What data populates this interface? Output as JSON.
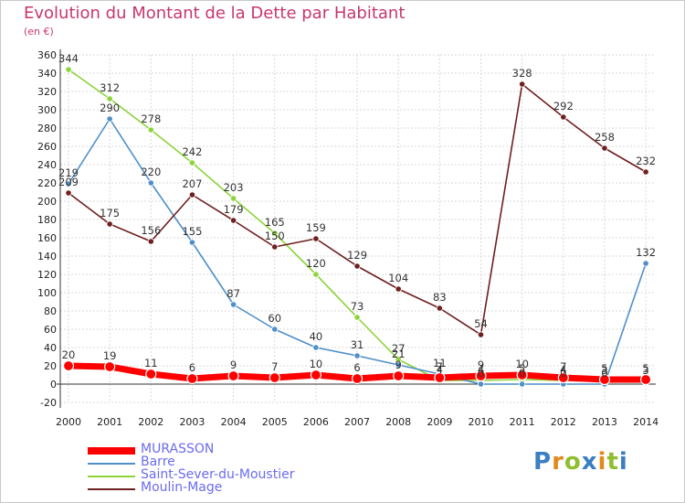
{
  "title": "Evolution du Montant de la Dette par Habitant",
  "subtitle": "(en €)",
  "logo_text": "Proxiti",
  "chart_data": {
    "type": "line",
    "title": "Evolution du Montant de la Dette par Habitant",
    "ylabel": "(en €)",
    "xlabel": "",
    "ylim": [
      -20,
      360
    ],
    "yticks": [
      -20,
      0,
      20,
      40,
      60,
      80,
      100,
      120,
      140,
      160,
      180,
      200,
      220,
      240,
      260,
      280,
      300,
      320,
      340,
      360
    ],
    "categories": [
      "2000",
      "2001",
      "2002",
      "2003",
      "2004",
      "2005",
      "2006",
      "2007",
      "2008",
      "2009",
      "2010",
      "2011",
      "2012",
      "2013",
      "2014"
    ],
    "grid": true,
    "legend_position": "bottom-left",
    "series": [
      {
        "name": "MURASSON",
        "color": "#ff0000",
        "values": [
          20,
          19,
          11,
          6,
          9,
          7,
          10,
          6,
          9,
          7,
          9,
          10,
          7,
          5,
          5
        ],
        "labeled": true
      },
      {
        "name": "Barre",
        "color": "#4f8fc9",
        "values": [
          219,
          290,
          220,
          155,
          87,
          60,
          40,
          31,
          21,
          11,
          0,
          0,
          0,
          0,
          132
        ],
        "labeled": true
      },
      {
        "name": "Saint-Sever-du-Moustier",
        "color": "#8cd43a",
        "values": [
          344,
          312,
          278,
          242,
          203,
          165,
          120,
          73,
          27,
          4,
          4,
          5,
          4,
          3,
          3
        ],
        "labeled": true
      },
      {
        "name": "Moulin-Mage",
        "color": "#6e1f1f",
        "values": [
          209,
          175,
          156,
          207,
          179,
          150,
          159,
          129,
          104,
          83,
          54,
          328,
          292,
          258,
          232
        ],
        "labeled": true
      }
    ]
  }
}
